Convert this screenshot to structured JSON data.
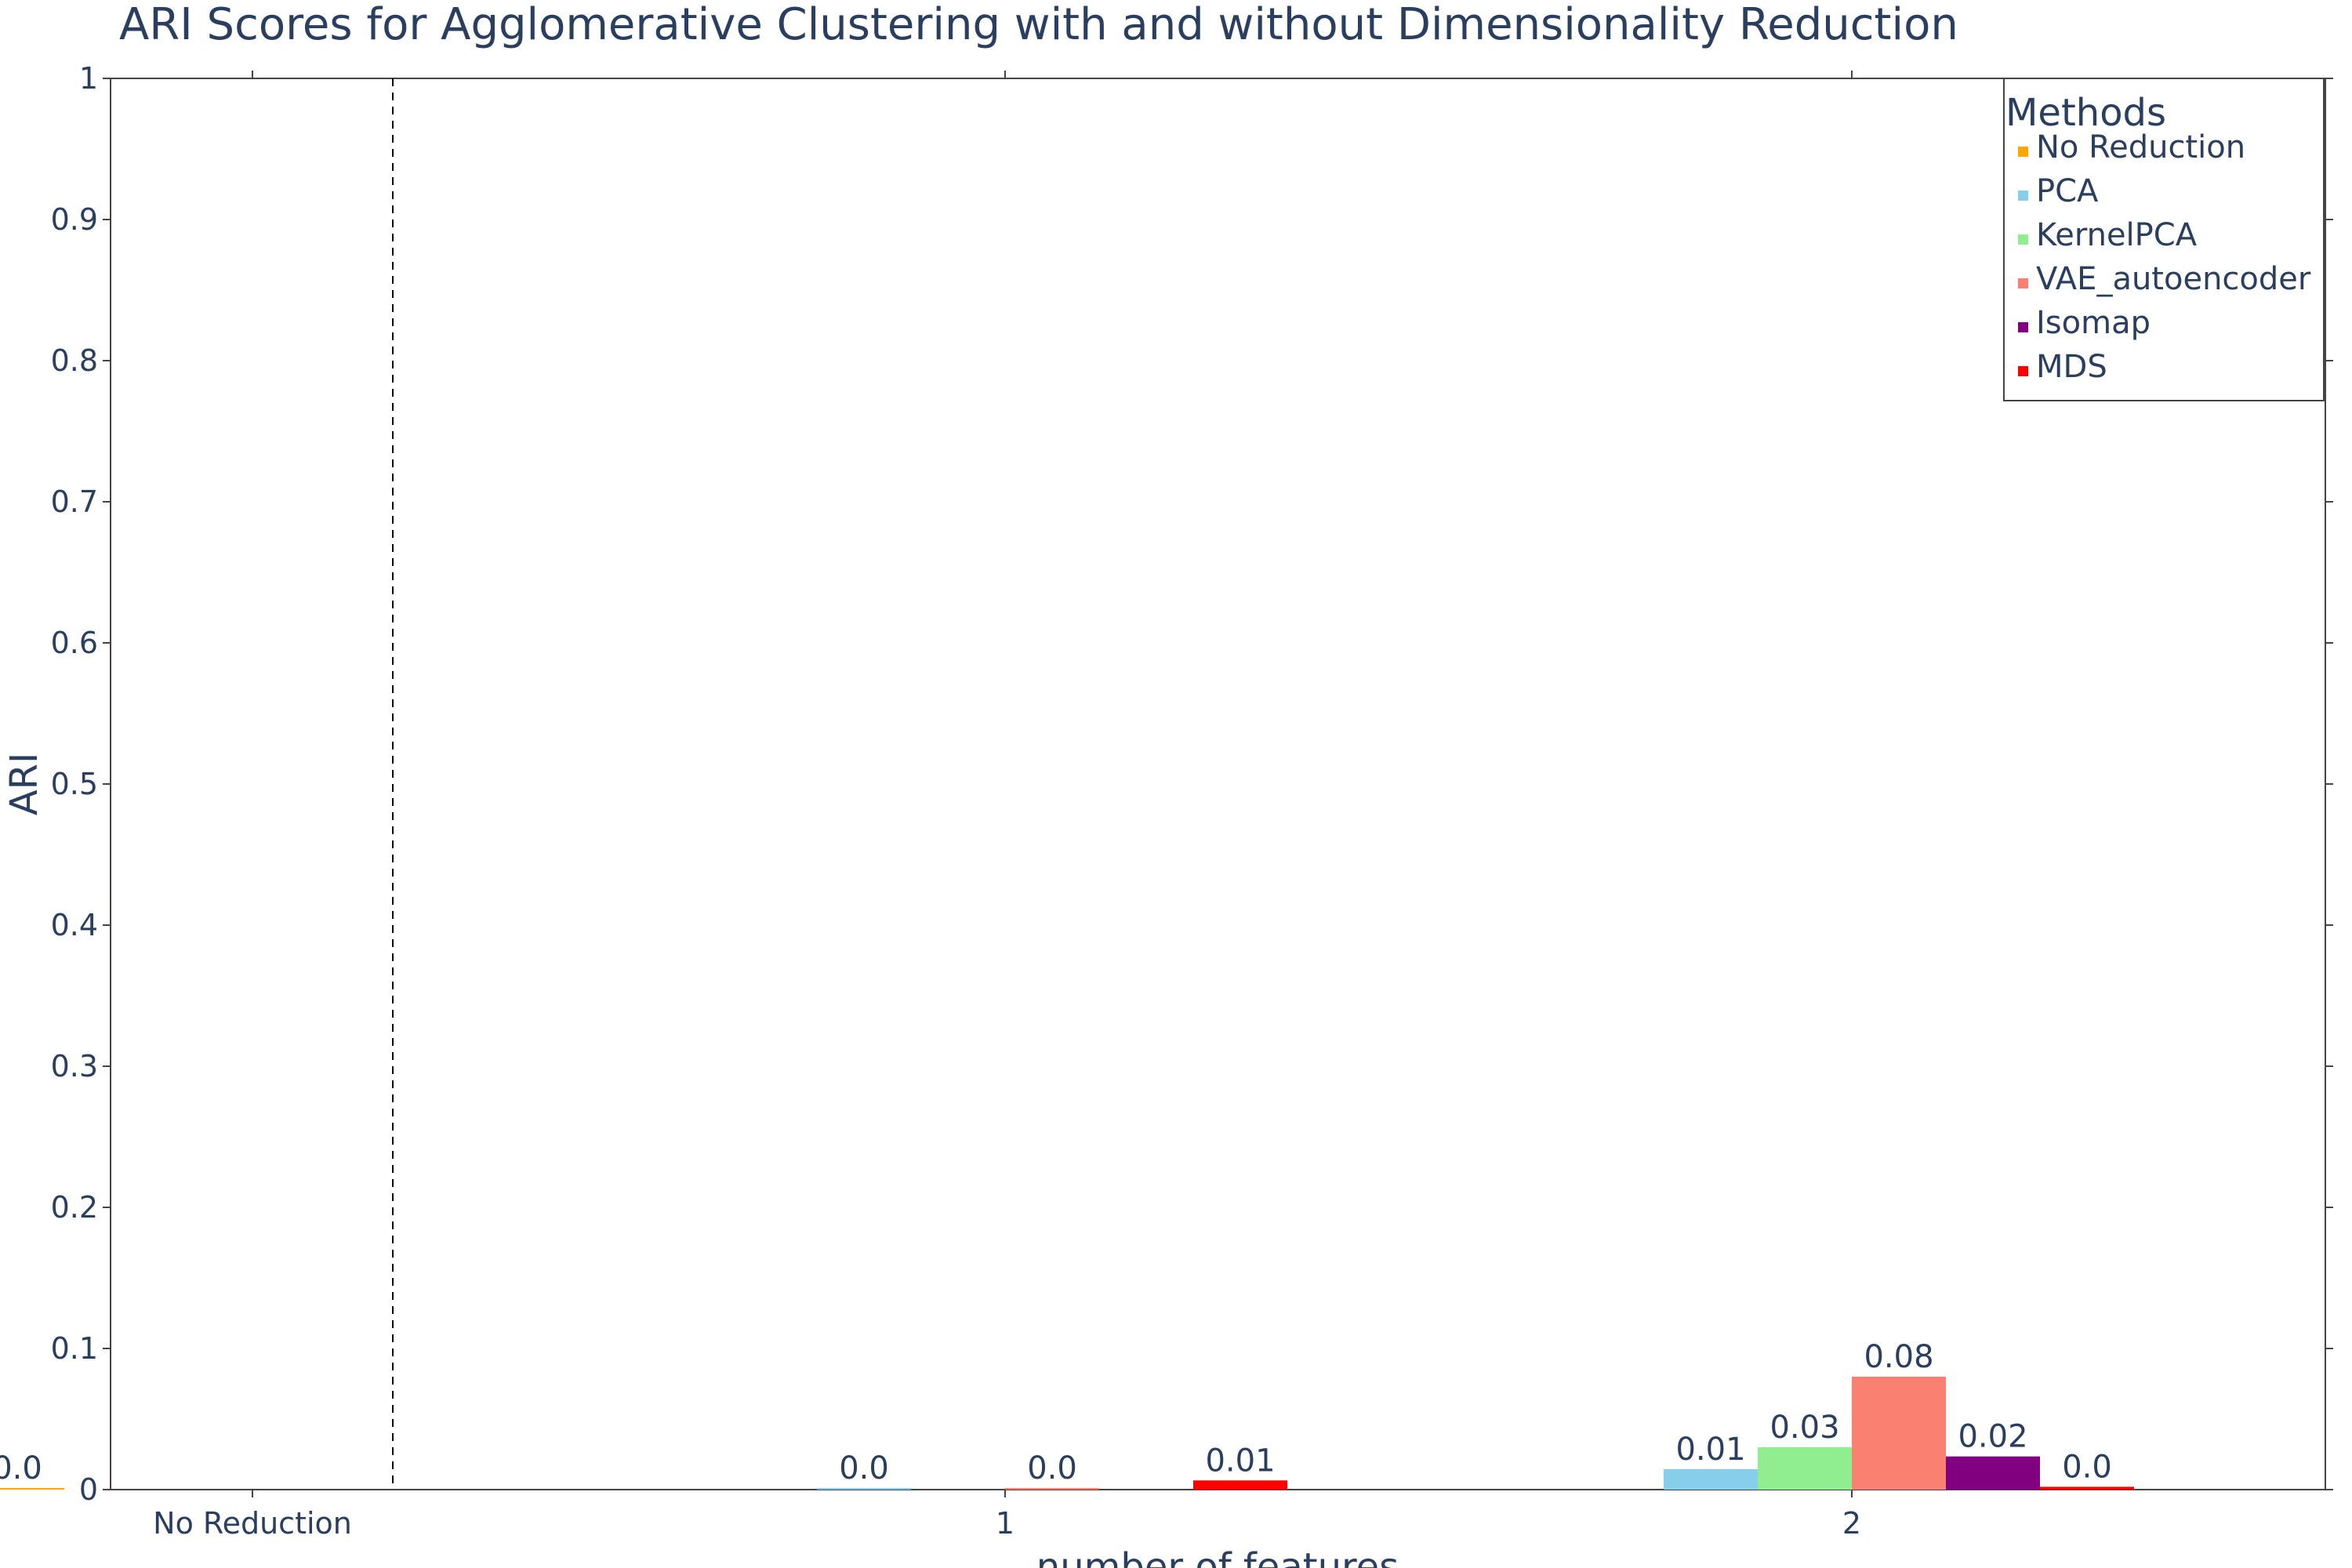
{
  "chart_data": {
    "type": "bar",
    "title": "ARI Scores for Agglomerative Clustering with and without Dimensionality Reduction",
    "xlabel": "number of features",
    "ylabel": "ARI",
    "ylim": [
      0,
      1
    ],
    "yticks": [
      0,
      0.1,
      0.2,
      0.3,
      0.4,
      0.5,
      0.6,
      0.7,
      0.8,
      0.9,
      1
    ],
    "ytick_labels": [
      "0",
      "0.1",
      "0.2",
      "0.3",
      "0.4",
      "0.5",
      "0.6",
      "0.7",
      "0.8",
      "0.9",
      "1"
    ],
    "categories": [
      "No Reduction",
      "1",
      "2"
    ],
    "grid": false,
    "legend": {
      "title": "Methods",
      "placement": "top-right"
    },
    "separator": {
      "type": "dashed-vertical",
      "between": [
        "No Reduction",
        "1"
      ]
    },
    "series": [
      {
        "name": "No Reduction",
        "color": "#FFA500",
        "values": [
          0.001,
          null,
          null
        ],
        "labels": [
          "0.0",
          "",
          ""
        ]
      },
      {
        "name": "PCA",
        "color": "#87CEEB",
        "values": [
          null,
          0.0005,
          0.0145
        ],
        "labels": [
          "",
          "0.0",
          "0.01"
        ]
      },
      {
        "name": "KernelPCA",
        "color": "#90EE90",
        "values": [
          null,
          null,
          0.03
        ],
        "labels": [
          "",
          "",
          "0.03"
        ]
      },
      {
        "name": "VAE_autoencoder",
        "color": "#FA8072",
        "values": [
          null,
          0.001,
          0.08
        ],
        "labels": [
          "",
          "0.0",
          "0.08"
        ]
      },
      {
        "name": "Isomap",
        "color": "#800080",
        "values": [
          null,
          null,
          0.0235
        ],
        "labels": [
          "",
          "",
          "0.02"
        ]
      },
      {
        "name": "MDS",
        "color": "#FF0000",
        "values": [
          null,
          0.0065,
          0.002
        ],
        "labels": [
          "",
          "0.01",
          "0.0"
        ]
      }
    ]
  }
}
